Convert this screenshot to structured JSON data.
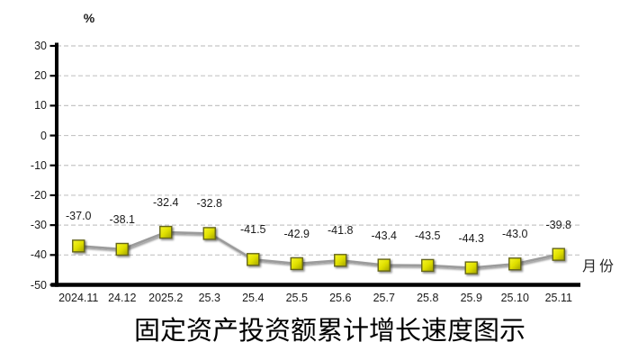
{
  "chart_data": {
    "type": "line",
    "title": "固定资产投资额累计增长速度图示",
    "unit_label": "%",
    "x_axis_title": "月份",
    "categories": [
      "2024.11",
      "24.12",
      "2025.2",
      "25.3",
      "25.4",
      "25.5",
      "25.6",
      "25.7",
      "25.8",
      "25.9",
      "25.10",
      "25.11"
    ],
    "values": [
      -37.0,
      -38.1,
      -32.4,
      -32.8,
      -41.5,
      -42.9,
      -41.8,
      -43.4,
      -43.5,
      -44.3,
      -43.0,
      -39.8
    ],
    "data_labels": [
      "-37.0",
      "-38.1",
      "-32.4",
      "-32.8",
      "-41.5",
      "-42.9",
      "-41.8",
      "-43.4",
      "-43.5",
      "-44.3",
      "-43.0",
      "-39.8"
    ],
    "ylim": [
      -50,
      30
    ],
    "y_ticks": [
      30,
      20,
      10,
      0,
      -10,
      -20,
      -30,
      -40,
      -50
    ],
    "grid": true,
    "legend": "none",
    "colors": {
      "marker_gradient": [
        "#f6f62a",
        "#e0e000",
        "#a2a200"
      ],
      "marker_border": "#65651a",
      "line": "#9b9b9b",
      "gridline": "#c5c5c5",
      "axis": "#000000",
      "label_text": "#1a1a1a"
    }
  }
}
